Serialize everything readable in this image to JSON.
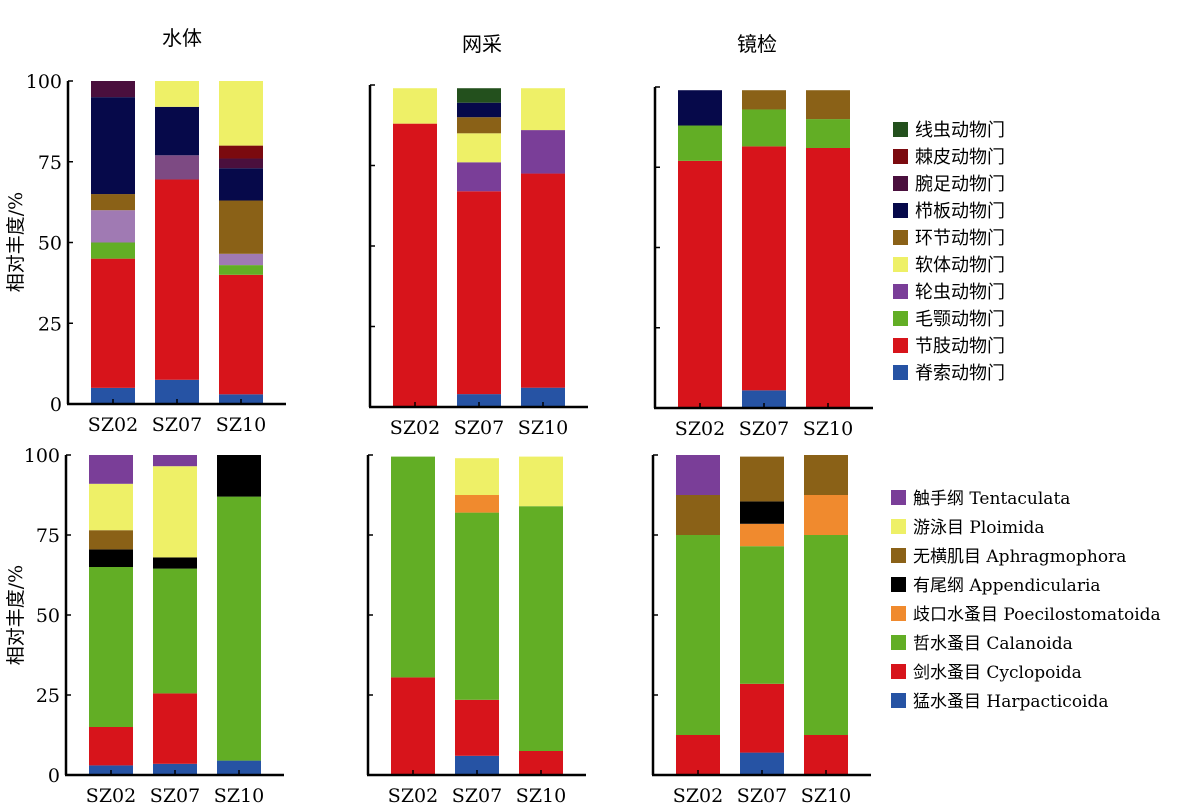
{
  "chart_data": {
    "type": "bar",
    "stacked": true,
    "ylim": [
      0,
      100
    ],
    "y_ticks": [
      0,
      25,
      50,
      75,
      100
    ],
    "categories": [
      "SZ02",
      "SZ07",
      "SZ10"
    ],
    "column_titles": [
      "水体",
      "网采",
      "镜检"
    ],
    "ylabel": "相对丰度/%",
    "grid": false,
    "top_row": {
      "legend_position": "right",
      "legend": [
        {
          "label": "线虫动物门",
          "color": "#23501d"
        },
        {
          "label": "棘皮动物门",
          "color": "#7b0a0f"
        },
        {
          "label": "腕足动物门",
          "color": "#4a0f3d"
        },
        {
          "label": "栉板动物门",
          "color": "#06094a"
        },
        {
          "label": "环节动物门",
          "color": "#8a6117"
        },
        {
          "label": "软体动物门",
          "color": "#eef067"
        },
        {
          "label": "轮虫动物门",
          "color": "#7a3e98"
        },
        {
          "label": "毛颚动物门",
          "color": "#62ae25"
        },
        {
          "label": "节肢动物门",
          "color": "#d7141b"
        },
        {
          "label": "脊索动物门",
          "color": "#2653a4"
        }
      ],
      "panels": [
        {
          "title": "水体",
          "bars": [
            {
              "category": "SZ02",
              "segments": [
                {
                  "name": "脊索动物门",
                  "value": 5,
                  "color": "#2653a4"
                },
                {
                  "name": "节肢动物门",
                  "value": 40,
                  "color": "#d7141b"
                },
                {
                  "name": "毛颚动物门",
                  "value": 5,
                  "color": "#62ae25"
                },
                {
                  "name": "",
                  "value": 10,
                  "color": "#a07ab3"
                },
                {
                  "name": "环节动物门",
                  "value": 5,
                  "color": "#8a6117"
                },
                {
                  "name": "栉板动物门",
                  "value": 30,
                  "color": "#06094a"
                },
                {
                  "name": "腕足动物门",
                  "value": 5,
                  "color": "#4a0f3d"
                }
              ]
            },
            {
              "category": "SZ07",
              "segments": [
                {
                  "name": "脊索动物门",
                  "value": 7.5,
                  "color": "#2653a4"
                },
                {
                  "name": "节肢动物门",
                  "value": 62,
                  "color": "#d7141b"
                },
                {
                  "name": "",
                  "value": 7.5,
                  "color": "#7d4a83"
                },
                {
                  "name": "栉板动物门",
                  "value": 15,
                  "color": "#06094a"
                },
                {
                  "name": "软体动物门",
                  "value": 8,
                  "color": "#eef067"
                }
              ]
            },
            {
              "category": "SZ10",
              "segments": [
                {
                  "name": "脊索动物门",
                  "value": 3,
                  "color": "#2653a4"
                },
                {
                  "name": "节肢动物门",
                  "value": 37,
                  "color": "#d7141b"
                },
                {
                  "name": "毛颚动物门",
                  "value": 3,
                  "color": "#62ae25"
                },
                {
                  "name": "",
                  "value": 3.5,
                  "color": "#a07ab3"
                },
                {
                  "name": "环节动物门",
                  "value": 16.5,
                  "color": "#8a6117"
                },
                {
                  "name": "栉板动物门",
                  "value": 10,
                  "color": "#06094a"
                },
                {
                  "name": "腕足动物门",
                  "value": 3,
                  "color": "#4a0f3d"
                },
                {
                  "name": "棘皮动物门",
                  "value": 4,
                  "color": "#7b0a0f"
                },
                {
                  "name": "软体动物门",
                  "value": 20,
                  "color": "#eef067"
                }
              ]
            }
          ]
        },
        {
          "title": "网采",
          "bars": [
            {
              "category": "SZ02",
              "segments": [
                {
                  "name": "节肢动物门",
                  "value": 88,
                  "color": "#d7141b"
                },
                {
                  "name": "软体动物门",
                  "value": 11,
                  "color": "#eef067"
                }
              ]
            },
            {
              "category": "SZ07",
              "segments": [
                {
                  "name": "脊索动物门",
                  "value": 4,
                  "color": "#2653a4"
                },
                {
                  "name": "节肢动物门",
                  "value": 63,
                  "color": "#d7141b"
                },
                {
                  "name": "轮虫动物门",
                  "value": 9,
                  "color": "#7a3e98"
                },
                {
                  "name": "软体动物门",
                  "value": 9,
                  "color": "#eef067"
                },
                {
                  "name": "环节动物门",
                  "value": 5,
                  "color": "#8a6117"
                },
                {
                  "name": "栉板动物门",
                  "value": 4.5,
                  "color": "#06094a"
                },
                {
                  "name": "线虫动物门",
                  "value": 4.5,
                  "color": "#23501d"
                }
              ]
            },
            {
              "category": "SZ10",
              "segments": [
                {
                  "name": "脊索动物门",
                  "value": 6,
                  "color": "#2653a4"
                },
                {
                  "name": "节肢动物门",
                  "value": 66.5,
                  "color": "#d7141b"
                },
                {
                  "name": "轮虫动物门",
                  "value": 13.5,
                  "color": "#7a3e98"
                },
                {
                  "name": "软体动物门",
                  "value": 13,
                  "color": "#eef067"
                }
              ]
            }
          ]
        },
        {
          "title": "镜检",
          "bars": [
            {
              "category": "SZ02",
              "segments": [
                {
                  "name": "节肢动物门",
                  "value": 77,
                  "color": "#d7141b"
                },
                {
                  "name": "毛颚动物门",
                  "value": 11,
                  "color": "#62ae25"
                },
                {
                  "name": "栉板动物门",
                  "value": 11,
                  "color": "#06094a"
                }
              ]
            },
            {
              "category": "SZ07",
              "segments": [
                {
                  "name": "脊索动物门",
                  "value": 5.5,
                  "color": "#2653a4"
                },
                {
                  "name": "节肢动物门",
                  "value": 76,
                  "color": "#d7141b"
                },
                {
                  "name": "毛颚动物门",
                  "value": 11.5,
                  "color": "#62ae25"
                },
                {
                  "name": "环节动物门",
                  "value": 6,
                  "color": "#8a6117"
                }
              ]
            },
            {
              "category": "SZ10",
              "segments": [
                {
                  "name": "节肢动物门",
                  "value": 81,
                  "color": "#d7141b"
                },
                {
                  "name": "毛颚动物门",
                  "value": 9,
                  "color": "#62ae25"
                },
                {
                  "name": "环节动物门",
                  "value": 9,
                  "color": "#8a6117"
                }
              ]
            }
          ]
        }
      ]
    },
    "bottom_row": {
      "legend_position": "right",
      "legend": [
        {
          "label": "触手纲 Tentaculata",
          "color": "#7a3e98"
        },
        {
          "label": "游泳目 Ploimida",
          "color": "#eef067"
        },
        {
          "label": "无横肌目 Aphragmophora",
          "color": "#8a6117"
        },
        {
          "label": "有尾纲 Appendicularia",
          "color": "#000000"
        },
        {
          "label": "歧口水蚤目 Poecilostomatoida",
          "color": "#f08a2e"
        },
        {
          "label": "哲水蚤目 Calanoida",
          "color": "#62ae25"
        },
        {
          "label": "剑水蚤目 Cyclopoida",
          "color": "#d7141b"
        },
        {
          "label": "猛水蚤目 Harpacticoida",
          "color": "#2653a4"
        }
      ],
      "panels": [
        {
          "title": "",
          "bars": [
            {
              "category": "SZ02",
              "segments": [
                {
                  "name": "猛水蚤目 Harpacticoida",
                  "value": 3,
                  "color": "#2653a4"
                },
                {
                  "name": "剑水蚤目 Cyclopoida",
                  "value": 12,
                  "color": "#d7141b"
                },
                {
                  "name": "哲水蚤目 Calanoida",
                  "value": 50,
                  "color": "#62ae25"
                },
                {
                  "name": "有尾纲 Appendicularia",
                  "value": 5.5,
                  "color": "#000000"
                },
                {
                  "name": "无横肌目 Aphragmophora",
                  "value": 6,
                  "color": "#8a6117"
                },
                {
                  "name": "游泳目 Ploimida",
                  "value": 14.5,
                  "color": "#eef067"
                },
                {
                  "name": "触手纲 Tentaculata",
                  "value": 9,
                  "color": "#7a3e98"
                }
              ]
            },
            {
              "category": "SZ07",
              "segments": [
                {
                  "name": "猛水蚤目 Harpacticoida",
                  "value": 3.5,
                  "color": "#2653a4"
                },
                {
                  "name": "剑水蚤目 Cyclopoida",
                  "value": 22,
                  "color": "#d7141b"
                },
                {
                  "name": "哲水蚤目 Calanoida",
                  "value": 39,
                  "color": "#62ae25"
                },
                {
                  "name": "有尾纲 Appendicularia",
                  "value": 3.5,
                  "color": "#000000"
                },
                {
                  "name": "游泳目 Ploimida",
                  "value": 28.5,
                  "color": "#eef067"
                },
                {
                  "name": "触手纲 Tentaculata",
                  "value": 3.5,
                  "color": "#7a3e98"
                }
              ]
            },
            {
              "category": "SZ10",
              "segments": [
                {
                  "name": "猛水蚤目 Harpacticoida",
                  "value": 4.5,
                  "color": "#2653a4"
                },
                {
                  "name": "哲水蚤目 Calanoida",
                  "value": 82.5,
                  "color": "#62ae25"
                },
                {
                  "name": "有尾纲 Appendicularia",
                  "value": 13,
                  "color": "#000000"
                }
              ]
            }
          ]
        },
        {
          "title": "",
          "bars": [
            {
              "category": "SZ02",
              "segments": [
                {
                  "name": "剑水蚤目 Cyclopoida",
                  "value": 30.5,
                  "color": "#d7141b"
                },
                {
                  "name": "哲水蚤目 Calanoida",
                  "value": 69,
                  "color": "#62ae25"
                }
              ]
            },
            {
              "category": "SZ07",
              "segments": [
                {
                  "name": "猛水蚤目 Harpacticoida",
                  "value": 6,
                  "color": "#2653a4"
                },
                {
                  "name": "剑水蚤目 Cyclopoida",
                  "value": 17.5,
                  "color": "#d7141b"
                },
                {
                  "name": "哲水蚤目 Calanoida",
                  "value": 58.5,
                  "color": "#62ae25"
                },
                {
                  "name": "歧口水蚤目 Poecilostomatoida",
                  "value": 5.5,
                  "color": "#f08a2e"
                },
                {
                  "name": "游泳目 Ploimida",
                  "value": 11.5,
                  "color": "#eef067"
                }
              ]
            },
            {
              "category": "SZ10",
              "segments": [
                {
                  "name": "剑水蚤目 Cyclopoida",
                  "value": 7.5,
                  "color": "#d7141b"
                },
                {
                  "name": "哲水蚤目 Calanoida",
                  "value": 76.5,
                  "color": "#62ae25"
                },
                {
                  "name": "游泳目 Ploimida",
                  "value": 15.5,
                  "color": "#eef067"
                }
              ]
            }
          ]
        },
        {
          "title": "",
          "bars": [
            {
              "category": "SZ02",
              "segments": [
                {
                  "name": "剑水蚤目 Cyclopoida",
                  "value": 12.5,
                  "color": "#d7141b"
                },
                {
                  "name": "哲水蚤目 Calanoida",
                  "value": 62.5,
                  "color": "#62ae25"
                },
                {
                  "name": "无横肌目 Aphragmophora",
                  "value": 12.5,
                  "color": "#8a6117"
                },
                {
                  "name": "触手纲 Tentaculata",
                  "value": 12.5,
                  "color": "#7a3e98"
                }
              ]
            },
            {
              "category": "SZ07",
              "segments": [
                {
                  "name": "猛水蚤目 Harpacticoida",
                  "value": 7,
                  "color": "#2653a4"
                },
                {
                  "name": "剑水蚤目 Cyclopoida",
                  "value": 21.5,
                  "color": "#d7141b"
                },
                {
                  "name": "哲水蚤目 Calanoida",
                  "value": 43,
                  "color": "#62ae25"
                },
                {
                  "name": "歧口水蚤目 Poecilostomatoida",
                  "value": 7,
                  "color": "#f08a2e"
                },
                {
                  "name": "有尾纲 Appendicularia",
                  "value": 7,
                  "color": "#000000"
                },
                {
                  "name": "无横肌目 Aphragmophora",
                  "value": 14,
                  "color": "#8a6117"
                }
              ]
            },
            {
              "category": "SZ10",
              "segments": [
                {
                  "name": "剑水蚤目 Cyclopoida",
                  "value": 12.5,
                  "color": "#d7141b"
                },
                {
                  "name": "哲水蚤目 Calanoida",
                  "value": 62.5,
                  "color": "#62ae25"
                },
                {
                  "name": "歧口水蚤目 Poecilostomatoida",
                  "value": 12.5,
                  "color": "#f08a2e"
                },
                {
                  "name": "无横肌目 Aphragmophora",
                  "value": 12.5,
                  "color": "#8a6117"
                }
              ]
            }
          ]
        }
      ]
    }
  }
}
